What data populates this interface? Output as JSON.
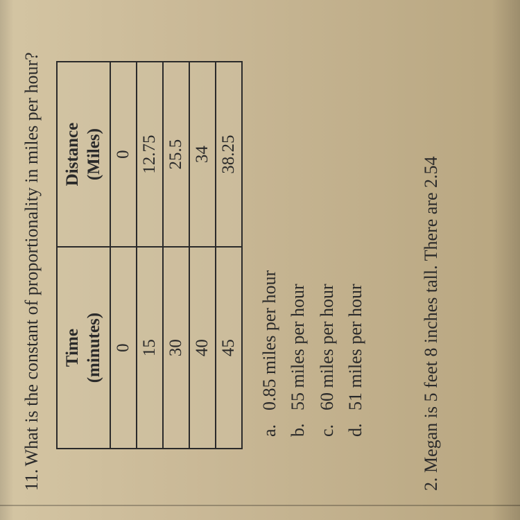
{
  "question": {
    "number": "11.",
    "text": "What is the constant of proportionality in miles per hour?"
  },
  "table": {
    "columns": [
      {
        "header_line1": "Time",
        "header_line2": "(minutes)"
      },
      {
        "header_line1": "Distance",
        "header_line2": "(Miles)"
      }
    ],
    "rows": [
      [
        "0",
        "0"
      ],
      [
        "15",
        "12.75"
      ],
      [
        "30",
        "25.5"
      ],
      [
        "40",
        "34"
      ],
      [
        "45",
        "38.25"
      ]
    ],
    "border_color": "#2a2a2a",
    "header_fontsize": 25,
    "cell_fontsize": 25
  },
  "options": [
    {
      "letter": "a.",
      "text": "0.85 miles per hour"
    },
    {
      "letter": "b.",
      "text": "55 miles per hour"
    },
    {
      "letter": "c.",
      "text": "60 miles per hour"
    },
    {
      "letter": "d.",
      "text": "51 miles per hour"
    }
  ],
  "bottom_question": {
    "number": "2.",
    "text": "Megan is 5 feet 8 inches tall. There are 2.54"
  },
  "colors": {
    "background": "#c9b896",
    "text": "#2a2a2a"
  }
}
